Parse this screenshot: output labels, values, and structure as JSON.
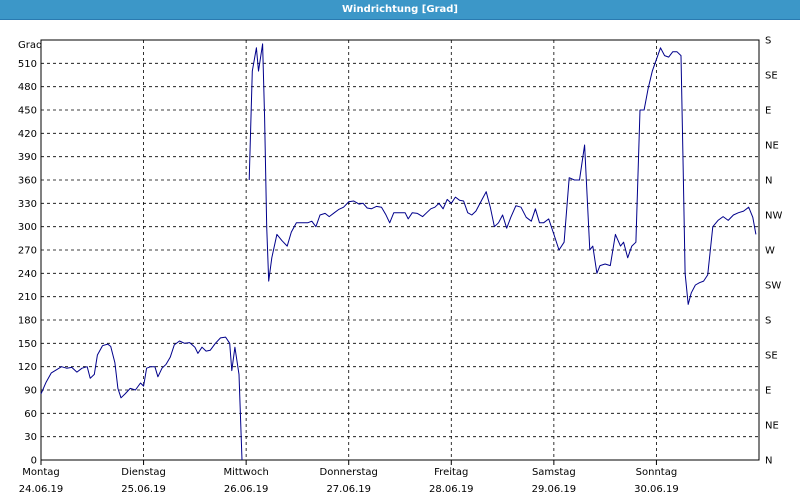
{
  "window": {
    "title": "Windrichtung [Grad]"
  },
  "chart_data": {
    "type": "line",
    "title": "Windrichtung [Grad]",
    "ylabel": "Grad",
    "ylim": [
      0,
      540
    ],
    "yticks": [
      0,
      30,
      60,
      90,
      120,
      150,
      180,
      210,
      240,
      270,
      300,
      330,
      360,
      390,
      420,
      450,
      480,
      510
    ],
    "right_axis_labels": [
      "N",
      "NE",
      "E",
      "SE",
      "S",
      "SW",
      "W",
      "NW",
      "N",
      "NE",
      "E",
      "SE",
      "S"
    ],
    "right_axis_values": [
      0,
      45,
      90,
      135,
      180,
      225,
      270,
      315,
      360,
      405,
      450,
      495,
      540
    ],
    "xlim": [
      0,
      7
    ],
    "x_unit": "days from Monday 24.06.19 00:00",
    "day_labels": [
      {
        "day": "Montag",
        "date": "24.06.19"
      },
      {
        "day": "Dienstag",
        "date": "25.06.19"
      },
      {
        "day": "Mittwoch",
        "date": "26.06.19"
      },
      {
        "day": "Donnerstag",
        "date": "27.06.19"
      },
      {
        "day": "Freitag",
        "date": "28.06.19"
      },
      {
        "day": "Samstag",
        "date": "29.06.19"
      },
      {
        "day": "Sonntag",
        "date": "30.06.19"
      }
    ],
    "grid": true,
    "line_color": "#00008b",
    "series": [
      {
        "name": "Windrichtung",
        "points": [
          [
            0.0,
            85
          ],
          [
            0.05,
            100
          ],
          [
            0.1,
            112
          ],
          [
            0.15,
            116
          ],
          [
            0.2,
            120
          ],
          [
            0.25,
            118
          ],
          [
            0.3,
            119
          ],
          [
            0.35,
            113
          ],
          [
            0.4,
            118
          ],
          [
            0.45,
            120
          ],
          [
            0.48,
            105
          ],
          [
            0.52,
            110
          ],
          [
            0.55,
            135
          ],
          [
            0.6,
            147
          ],
          [
            0.65,
            149
          ],
          [
            0.68,
            146
          ],
          [
            0.72,
            125
          ],
          [
            0.75,
            92
          ],
          [
            0.78,
            80
          ],
          [
            0.82,
            85
          ],
          [
            0.87,
            92
          ],
          [
            0.92,
            90
          ],
          [
            0.97,
            99
          ],
          [
            1.0,
            95
          ],
          [
            1.03,
            118
          ],
          [
            1.07,
            120
          ],
          [
            1.11,
            120
          ],
          [
            1.14,
            107
          ],
          [
            1.18,
            118
          ],
          [
            1.22,
            123
          ],
          [
            1.26,
            132
          ],
          [
            1.3,
            148
          ],
          [
            1.35,
            153
          ],
          [
            1.4,
            150
          ],
          [
            1.45,
            151
          ],
          [
            1.5,
            145
          ],
          [
            1.53,
            137
          ],
          [
            1.57,
            145
          ],
          [
            1.61,
            140
          ],
          [
            1.65,
            141
          ],
          [
            1.7,
            150
          ],
          [
            1.75,
            157
          ],
          [
            1.8,
            158
          ],
          [
            1.84,
            150
          ],
          [
            1.86,
            115
          ],
          [
            1.89,
            145
          ],
          [
            1.93,
            110
          ],
          [
            1.96,
            0
          ]
        ]
      },
      {
        "name": "Windrichtung",
        "points": [
          [
            2.03,
            360
          ],
          [
            2.06,
            500
          ],
          [
            2.1,
            530
          ],
          [
            2.12,
            500
          ],
          [
            2.16,
            535
          ],
          [
            2.18,
            440
          ],
          [
            2.2,
            300
          ],
          [
            2.22,
            230
          ],
          [
            2.25,
            260
          ],
          [
            2.3,
            290
          ],
          [
            2.35,
            282
          ],
          [
            2.4,
            275
          ],
          [
            2.44,
            293
          ],
          [
            2.49,
            305
          ],
          [
            2.55,
            305
          ],
          [
            2.6,
            305
          ],
          [
            2.64,
            307
          ],
          [
            2.68,
            300
          ],
          [
            2.72,
            315
          ],
          [
            2.77,
            317
          ],
          [
            2.81,
            313
          ],
          [
            2.86,
            318
          ],
          [
            2.9,
            322
          ],
          [
            2.95,
            325
          ],
          [
            3.0,
            332
          ],
          [
            3.05,
            333
          ],
          [
            3.1,
            329
          ],
          [
            3.14,
            330
          ],
          [
            3.18,
            324
          ],
          [
            3.22,
            323
          ],
          [
            3.27,
            326
          ],
          [
            3.32,
            325
          ],
          [
            3.36,
            316
          ],
          [
            3.4,
            305
          ],
          [
            3.44,
            318
          ],
          [
            3.5,
            318
          ],
          [
            3.55,
            318
          ],
          [
            3.58,
            310
          ],
          [
            3.62,
            318
          ],
          [
            3.67,
            317
          ],
          [
            3.72,
            313
          ],
          [
            3.76,
            318
          ],
          [
            3.8,
            323
          ],
          [
            3.84,
            325
          ],
          [
            3.88,
            330
          ],
          [
            3.92,
            323
          ],
          [
            3.96,
            335
          ],
          [
            4.0,
            330
          ],
          [
            4.04,
            338
          ],
          [
            4.08,
            334
          ],
          [
            4.12,
            333
          ],
          [
            4.16,
            318
          ],
          [
            4.2,
            315
          ],
          [
            4.24,
            320
          ],
          [
            4.3,
            335
          ],
          [
            4.34,
            345
          ],
          [
            4.38,
            325
          ],
          [
            4.42,
            300
          ],
          [
            4.46,
            305
          ],
          [
            4.5,
            315
          ],
          [
            4.54,
            298
          ],
          [
            4.58,
            312
          ],
          [
            4.63,
            327
          ],
          [
            4.68,
            325
          ],
          [
            4.73,
            312
          ],
          [
            4.78,
            307
          ],
          [
            4.82,
            323
          ],
          [
            4.86,
            305
          ],
          [
            4.9,
            305
          ],
          [
            4.95,
            310
          ],
          [
            5.0,
            290
          ],
          [
            5.05,
            270
          ],
          [
            5.1,
            280
          ],
          [
            5.15,
            363
          ],
          [
            5.2,
            360
          ],
          [
            5.25,
            360
          ],
          [
            5.3,
            405
          ],
          [
            5.35,
            270
          ],
          [
            5.38,
            275
          ],
          [
            5.42,
            240
          ],
          [
            5.45,
            250
          ],
          [
            5.5,
            252
          ],
          [
            5.55,
            250
          ],
          [
            5.6,
            290
          ],
          [
            5.65,
            275
          ],
          [
            5.68,
            280
          ],
          [
            5.72,
            260
          ],
          [
            5.76,
            275
          ],
          [
            5.8,
            280
          ],
          [
            5.84,
            450
          ],
          [
            5.88,
            450
          ],
          [
            5.92,
            478
          ],
          [
            5.96,
            500
          ],
          [
            6.0,
            515
          ],
          [
            6.04,
            530
          ],
          [
            6.08,
            520
          ],
          [
            6.12,
            518
          ],
          [
            6.16,
            525
          ],
          [
            6.2,
            525
          ],
          [
            6.24,
            520
          ],
          [
            6.26,
            380
          ],
          [
            6.28,
            240
          ],
          [
            6.31,
            200
          ],
          [
            6.34,
            215
          ],
          [
            6.38,
            225
          ],
          [
            6.42,
            228
          ],
          [
            6.46,
            230
          ],
          [
            6.5,
            238
          ],
          [
            6.55,
            300
          ],
          [
            6.6,
            308
          ],
          [
            6.65,
            313
          ],
          [
            6.7,
            308
          ],
          [
            6.75,
            315
          ],
          [
            6.8,
            318
          ],
          [
            6.85,
            320
          ],
          [
            6.9,
            325
          ],
          [
            6.94,
            312
          ],
          [
            6.97,
            290
          ]
        ]
      }
    ]
  }
}
